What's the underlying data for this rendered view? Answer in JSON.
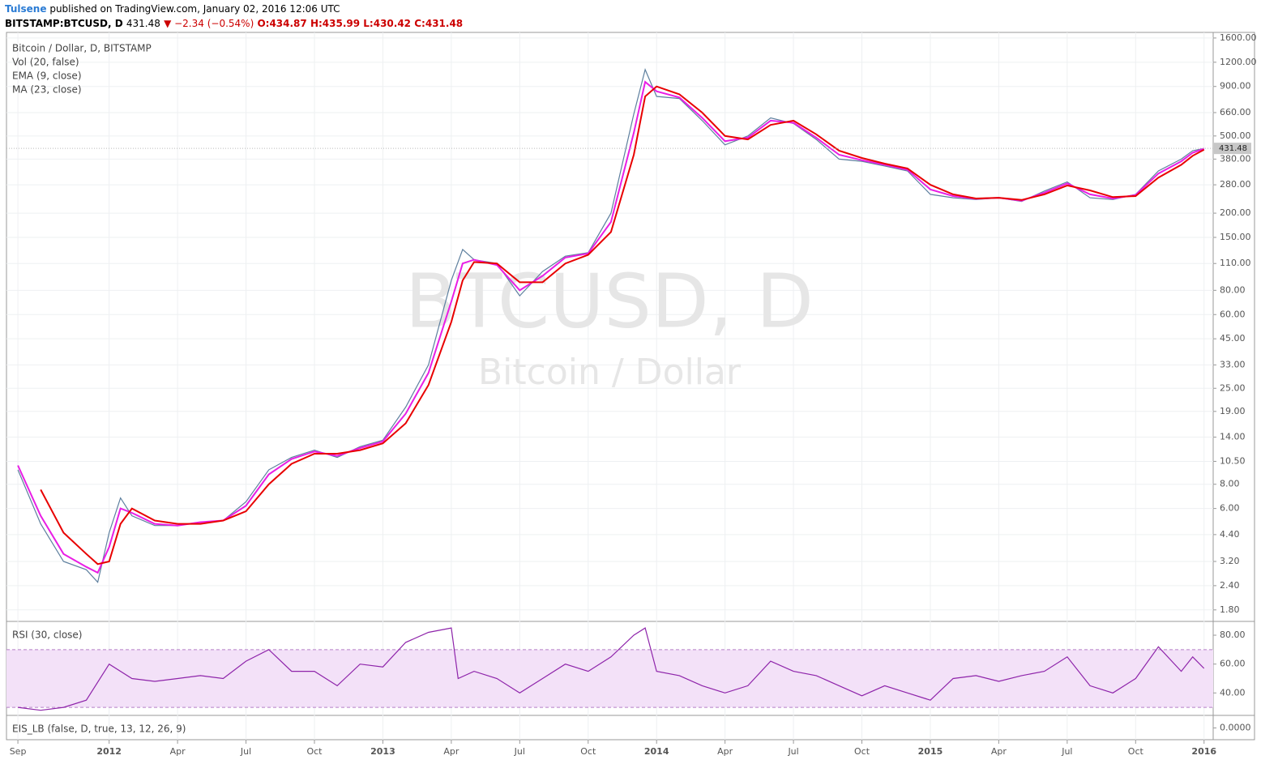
{
  "header": {
    "author": "Tulsene",
    "published": "published on TradingView.com, January 02, 2016 12:06 UTC",
    "symbol": "BITSTAMP:BTCUSD, D",
    "last": "431.48",
    "change": "▼ −2.34 (−0.54%)",
    "open": "O:434.87",
    "high": "H:435.99",
    "low": "L:430.42",
    "close": "C:431.48"
  },
  "chart_data": [
    {
      "type": "line",
      "title": "Bitcoin / Dollar, D, BITSTAMP",
      "legend": [
        "Vol (20, false)",
        "EMA (9, close)",
        "MA (23, close)"
      ],
      "watermark": "BTCUSD, D",
      "watermark_subtitle": "Bitcoin / Dollar",
      "log_scale": true,
      "grid": true,
      "x": [
        0,
        1,
        2,
        3,
        3.5,
        4,
        4.5,
        5,
        6,
        7,
        8,
        9,
        10,
        11,
        12,
        13,
        14,
        15,
        16,
        17,
        18,
        19,
        19.5,
        20,
        21,
        22,
        23,
        24,
        25,
        26,
        27,
        27.5,
        28,
        29,
        30,
        31,
        32,
        33,
        34,
        35,
        36,
        37,
        38,
        39,
        40,
        41,
        42,
        43,
        44,
        45,
        46,
        47,
        48,
        49,
        50,
        51,
        51.5,
        52
      ],
      "series": [
        {
          "name": "BTCUSD",
          "color": "#5d7f9e",
          "values": [
            9.5,
            5,
            3.2,
            2.9,
            2.5,
            4.5,
            6.8,
            5.5,
            4.9,
            4.9,
            5.1,
            5.2,
            6.5,
            9.5,
            11,
            12,
            11,
            12.5,
            13.5,
            20,
            33,
            90,
            130,
            115,
            110,
            75,
            100,
            120,
            125,
            200,
            650,
            1100,
            800,
            780,
            600,
            450,
            500,
            620,
            580,
            480,
            380,
            370,
            350,
            330,
            250,
            240,
            235,
            240,
            230,
            260,
            290,
            240,
            235,
            250,
            330,
            380,
            420,
            431.48
          ]
        },
        {
          "name": "EMA",
          "color": "#e91ee5",
          "values": [
            10,
            5.5,
            3.5,
            3,
            2.8,
            3.8,
            6,
            5.7,
            5,
            4.9,
            5.1,
            5.2,
            6.2,
            9,
            10.8,
            11.8,
            11.2,
            12.3,
            13.3,
            18.5,
            30,
            70,
            110,
            115,
            108,
            80,
            95,
            118,
            124,
            180,
            520,
            950,
            850,
            790,
            620,
            470,
            490,
            600,
            585,
            490,
            400,
            375,
            355,
            335,
            265,
            245,
            237,
            240,
            232,
            255,
            285,
            250,
            238,
            248,
            320,
            370,
            410,
            430
          ]
        },
        {
          "name": "MA",
          "color": "#e80000",
          "values": [
            null,
            7.5,
            4.5,
            3.5,
            3.1,
            3.2,
            5,
            6,
            5.2,
            5,
            5,
            5.2,
            5.8,
            8,
            10.2,
            11.5,
            11.5,
            12,
            13,
            16.5,
            26,
            55,
            90,
            112,
            110,
            88,
            88,
            110,
            122,
            160,
            400,
            800,
            900,
            820,
            660,
            500,
            480,
            570,
            600,
            510,
            420,
            385,
            360,
            340,
            280,
            250,
            238,
            240,
            234,
            250,
            278,
            262,
            242,
            245,
            305,
            355,
            395,
            425
          ]
        }
      ],
      "xlim": [
        -0.5,
        52.4
      ],
      "xticks": [
        {
          "value": 0,
          "label": "Sep"
        },
        {
          "value": 4,
          "label": "2012"
        },
        {
          "value": 7,
          "label": "Apr"
        },
        {
          "value": 10,
          "label": "Jul"
        },
        {
          "value": 13,
          "label": "Oct"
        },
        {
          "value": 16,
          "label": "2013"
        },
        {
          "value": 19,
          "label": "Apr"
        },
        {
          "value": 22,
          "label": "Jul"
        },
        {
          "value": 25,
          "label": "Oct"
        },
        {
          "value": 28,
          "label": "2014"
        },
        {
          "value": 31,
          "label": "Apr"
        },
        {
          "value": 34,
          "label": "Jul"
        },
        {
          "value": 37,
          "label": "Oct"
        },
        {
          "value": 40,
          "label": "2015"
        },
        {
          "value": 43,
          "label": "Apr"
        },
        {
          "value": 46,
          "label": "Jul"
        },
        {
          "value": 49,
          "label": "Oct"
        },
        {
          "value": 52,
          "label": "2016"
        }
      ],
      "ylim": [
        1.57,
        1710
      ],
      "yticks": [
        {
          "value": 1600,
          "label": "1600.00"
        },
        {
          "value": 1200,
          "label": "1200.00"
        },
        {
          "value": 900,
          "label": "900.00"
        },
        {
          "value": 660,
          "label": "660.00"
        },
        {
          "value": 500,
          "label": "500.00"
        },
        {
          "value": 380,
          "label": "380.00"
        },
        {
          "value": 280,
          "label": "280.00"
        },
        {
          "value": 200,
          "label": "200.00"
        },
        {
          "value": 150,
          "label": "150.00"
        },
        {
          "value": 110,
          "label": "110.00"
        },
        {
          "value": 80,
          "label": "80.00"
        },
        {
          "value": 60,
          "label": "60.00"
        },
        {
          "value": 45,
          "label": "45.00"
        },
        {
          "value": 33,
          "label": "33.00"
        },
        {
          "value": 25,
          "label": "25.00"
        },
        {
          "value": 19,
          "label": "19.00"
        },
        {
          "value": 14,
          "label": "14.00"
        },
        {
          "value": 10.5,
          "label": "10.50"
        },
        {
          "value": 8,
          "label": "8.00"
        },
        {
          "value": 6,
          "label": "6.00"
        },
        {
          "value": 4.4,
          "label": "4.40"
        },
        {
          "value": 3.2,
          "label": "3.20"
        },
        {
          "value": 2.4,
          "label": "2.40"
        },
        {
          "value": 1.8,
          "label": "1.80"
        }
      ]
    },
    {
      "type": "line",
      "title": "RSI (30, close)",
      "band": [
        30,
        70
      ],
      "band_color": "#f3e1f8",
      "x": [
        0,
        1,
        2,
        3,
        4,
        5,
        6,
        7,
        8,
        9,
        10,
        11,
        12,
        13,
        14,
        15,
        16,
        17,
        18,
        19,
        19.3,
        20,
        21,
        22,
        23,
        24,
        25,
        26,
        27,
        27.5,
        28,
        29,
        30,
        31,
        32,
        33,
        34,
        35,
        36,
        37,
        38,
        39,
        40,
        41,
        42,
        43,
        44,
        45,
        46,
        47,
        48,
        49,
        50,
        51,
        51.5,
        52
      ],
      "series": [
        {
          "name": "RSI",
          "color": "#8e24aa",
          "values": [
            30,
            28,
            30,
            35,
            60,
            50,
            48,
            50,
            52,
            50,
            62,
            70,
            55,
            55,
            45,
            60,
            58,
            75,
            82,
            85,
            50,
            55,
            50,
            40,
            50,
            60,
            55,
            65,
            80,
            85,
            55,
            52,
            45,
            40,
            45,
            62,
            55,
            52,
            45,
            38,
            45,
            40,
            35,
            50,
            52,
            48,
            52,
            55,
            65,
            45,
            40,
            50,
            72,
            55,
            65,
            57
          ]
        }
      ],
      "xlim": [
        -0.5,
        52.4
      ],
      "ylim": [
        25,
        89
      ],
      "yticks": [
        {
          "value": 80,
          "label": "80.00"
        },
        {
          "value": 60,
          "label": "60.00"
        },
        {
          "value": 40,
          "label": "40.00"
        }
      ]
    },
    {
      "type": "line",
      "title": "EIS_LB (false, D, true, 13, 12, 26, 9)",
      "ylim": [
        -1,
        1
      ],
      "yticks": [
        {
          "value": 0,
          "label": "0.0000"
        }
      ]
    }
  ]
}
